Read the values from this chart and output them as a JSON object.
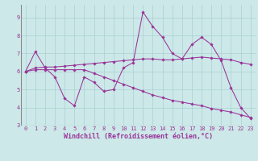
{
  "xlabel": "Windchill (Refroidissement éolien,°C)",
  "background_color": "#cce8e8",
  "line_color": "#993399",
  "xlim": [
    -0.5,
    23.5
  ],
  "ylim": [
    3.0,
    9.7
  ],
  "yticks": [
    3,
    4,
    5,
    6,
    7,
    8,
    9
  ],
  "xticks": [
    0,
    1,
    2,
    3,
    4,
    5,
    6,
    7,
    8,
    9,
    10,
    11,
    12,
    13,
    14,
    15,
    16,
    17,
    18,
    19,
    20,
    21,
    22,
    23
  ],
  "line1_x": [
    0,
    1,
    2,
    3,
    4,
    5,
    6,
    7,
    8,
    9,
    10,
    11,
    12,
    13,
    14,
    15,
    16,
    17,
    18,
    19,
    20,
    21,
    22,
    23
  ],
  "line1_y": [
    6.0,
    7.1,
    6.2,
    5.7,
    4.5,
    4.1,
    5.7,
    5.4,
    4.9,
    5.0,
    6.2,
    6.5,
    9.3,
    8.5,
    7.9,
    7.0,
    6.7,
    7.5,
    7.9,
    7.5,
    6.6,
    5.1,
    4.0,
    3.4
  ],
  "line2_x": [
    0,
    1,
    2,
    3,
    4,
    5,
    6,
    7,
    8,
    9,
    10,
    11,
    12,
    13,
    14,
    15,
    16,
    17,
    18,
    19,
    20,
    21,
    22,
    23
  ],
  "line2_y": [
    6.0,
    6.2,
    6.25,
    6.25,
    6.3,
    6.35,
    6.4,
    6.45,
    6.5,
    6.55,
    6.6,
    6.65,
    6.7,
    6.7,
    6.65,
    6.65,
    6.7,
    6.75,
    6.8,
    6.75,
    6.7,
    6.65,
    6.5,
    6.4
  ],
  "line3_x": [
    0,
    1,
    2,
    3,
    4,
    5,
    6,
    7,
    8,
    9,
    10,
    11,
    12,
    13,
    14,
    15,
    16,
    17,
    18,
    19,
    20,
    21,
    22,
    23
  ],
  "line3_y": [
    6.0,
    6.1,
    6.1,
    6.1,
    6.1,
    6.1,
    6.1,
    5.9,
    5.7,
    5.5,
    5.3,
    5.1,
    4.9,
    4.7,
    4.55,
    4.4,
    4.3,
    4.2,
    4.1,
    3.95,
    3.85,
    3.75,
    3.6,
    3.45
  ],
  "grid_color": "#aad0d0",
  "tick_fontsize": 5.0,
  "label_fontsize": 6.0
}
